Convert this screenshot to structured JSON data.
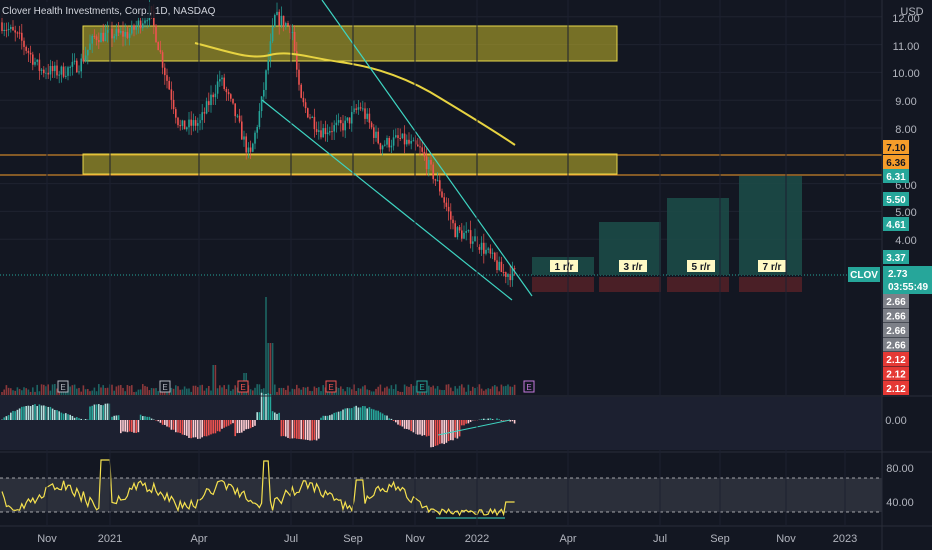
{
  "header": {
    "title": "Clover Health Investments, Corp., 1D, NASDAQ",
    "currency": "USD"
  },
  "colors": {
    "background": "#131722",
    "grid": "#2a2e39",
    "up": "#26a69a",
    "down": "#ef5350",
    "zone": "#d4c63a",
    "trendline": "#3ed4c1",
    "ma": "#e7d341",
    "rsi": "#f5e14f"
  },
  "chart_data": {
    "type": "candlestick",
    "symbol": "CLOV",
    "price_axis_ticks": [
      "12.00",
      "11.00",
      "10.00",
      "9.00",
      "8.00",
      "7.10",
      "6.36",
      "6.31",
      "6.00",
      "5.50",
      "5.00",
      "4.61",
      "4.00",
      "3.37",
      "2.73",
      "2.66",
      "2.66",
      "2.66",
      "2.66",
      "2.12",
      "2.12",
      "2.12"
    ],
    "price_grid": [
      12,
      11,
      10,
      9,
      8,
      6,
      5,
      4
    ],
    "price_tags": [
      {
        "label": "7.10",
        "value": 7.1,
        "color": "#f59d2a"
      },
      {
        "label": "6.36",
        "value": 6.36,
        "color": "#f59d2a"
      },
      {
        "label": "6.31",
        "value": 6.31,
        "color": "#26a69a"
      },
      {
        "label": "5.50",
        "value": 5.5,
        "color": "#26a69a"
      },
      {
        "label": "4.61",
        "value": 4.61,
        "color": "#26a69a"
      },
      {
        "label": "3.37",
        "value": 3.37,
        "color": "#26a69a"
      }
    ],
    "last_price": {
      "label": "2.73",
      "countdown": "03:55:49",
      "symbol": "CLOV",
      "value": 2.73
    },
    "lower_tags": [
      {
        "label": "2.66",
        "color": "#7d8088"
      },
      {
        "label": "2.66",
        "color": "#7d8088"
      },
      {
        "label": "2.66",
        "color": "#7d8088"
      },
      {
        "label": "2.66",
        "color": "#7d8088"
      },
      {
        "label": "2.12",
        "color": "#e53935"
      },
      {
        "label": "2.12",
        "color": "#e53935"
      },
      {
        "label": "2.12",
        "color": "#e53935"
      }
    ],
    "zones": [
      {
        "name": "resistance",
        "low": 10.5,
        "high": 11.8
      },
      {
        "name": "support",
        "low": 6.31,
        "high": 7.1
      }
    ],
    "rr_boxes": [
      "1 r/r",
      "3 r/r",
      "5 r/r",
      "7 r/r"
    ],
    "macd_axis": [
      "0.00"
    ],
    "rsi_axis": [
      "80.00",
      "40.00"
    ],
    "time_axis": [
      "Nov",
      "2021",
      "Apr",
      "Jul",
      "Sep",
      "Nov",
      "2022",
      "Apr",
      "Jul",
      "Sep",
      "Nov",
      "2023"
    ],
    "earnings_markers": [
      "E",
      "E",
      "E",
      "E",
      "E",
      "E"
    ]
  }
}
